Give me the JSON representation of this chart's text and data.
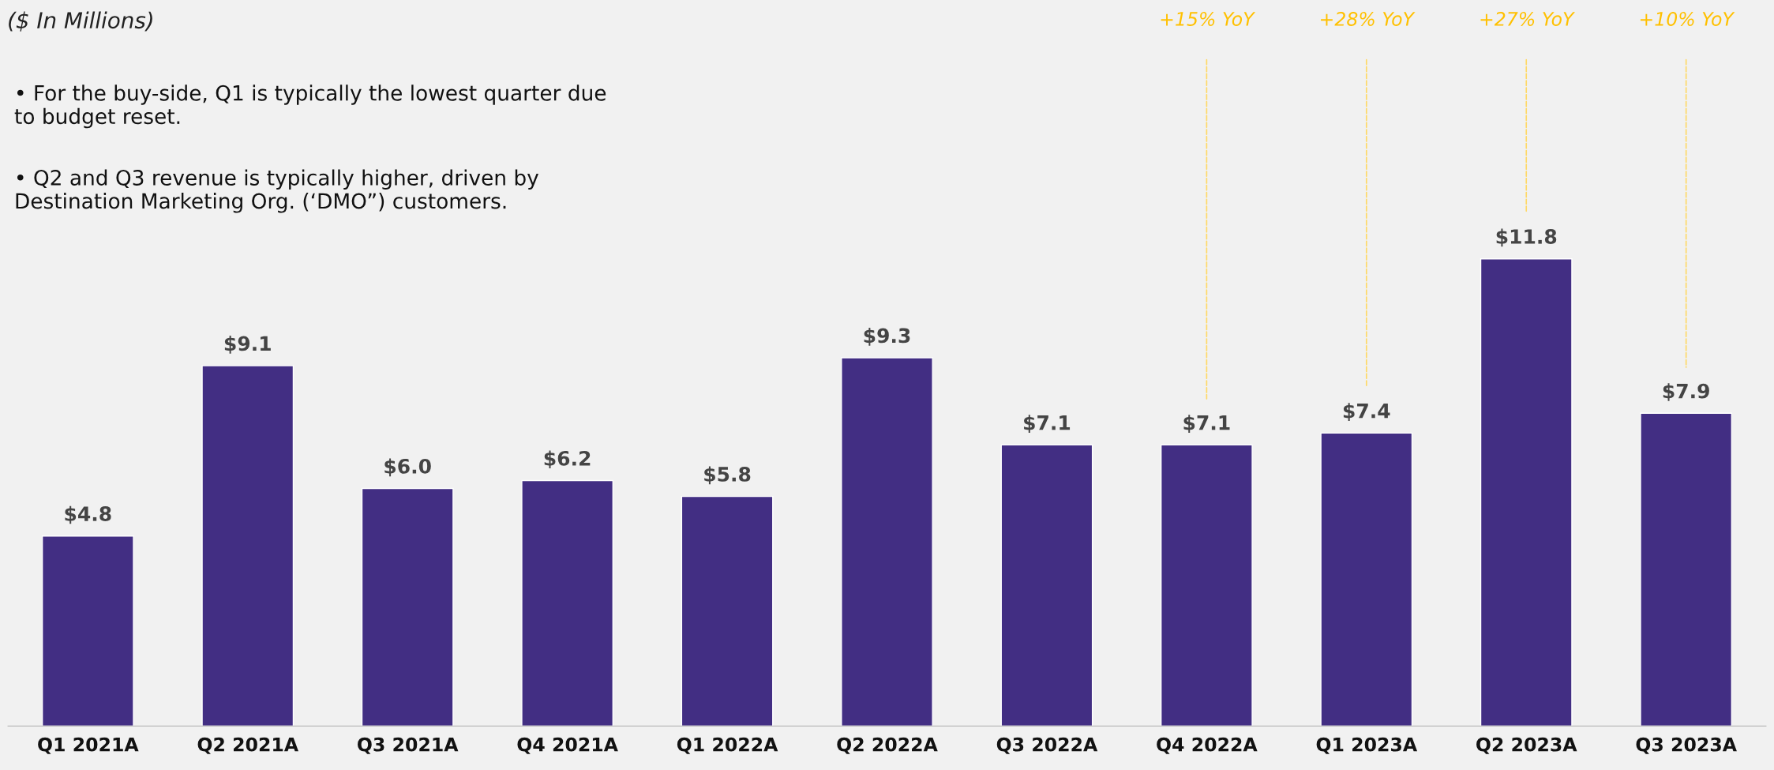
{
  "chart_data": {
    "type": "bar",
    "title": "($ In Millions)",
    "categories": [
      "Q1 2021A",
      "Q2 2021A",
      "Q3 2021A",
      "Q4 2021A",
      "Q1 2022A",
      "Q2 2022A",
      "Q3 2022A",
      "Q4 2022A",
      "Q1 2023A",
      "Q2 2023A",
      "Q3 2023A"
    ],
    "values": [
      4.8,
      9.1,
      6.0,
      6.2,
      5.8,
      9.3,
      7.1,
      7.1,
      7.4,
      11.8,
      7.9
    ],
    "value_labels": [
      "$4.8",
      "$9.1",
      "$6.0",
      "$6.2",
      "$5.8",
      "$9.3",
      "$7.1",
      "$7.1",
      "$7.4",
      "$11.8",
      "$7.9"
    ],
    "color": "#422e83",
    "annotations": [
      "• For the buy-side, Q1 is typically the lowest quarter due to budget reset.",
      "• Q2 and Q3 revenue is typically higher, driven by Destination Marketing Org. (‘DMO”) customers.",
      "+15% YoY",
      "+28% YoY",
      "+27% YoY",
      "+10% YoY"
    ],
    "grid": false,
    "legend": false
  }
}
